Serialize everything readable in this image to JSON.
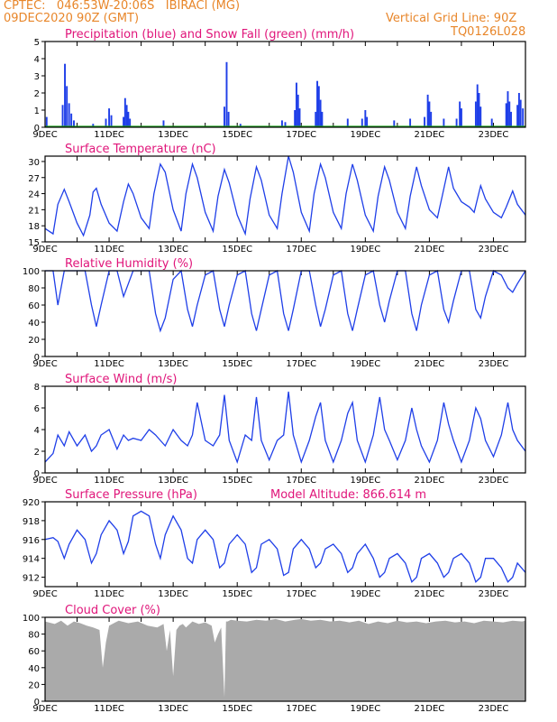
{
  "header": {
    "station": "CPTEC:   046:53W-20:06S   IBIRACI (MG)",
    "run": "09DEC2020 90Z (GMT)",
    "grid_line": "Vertical Grid Line: 90Z",
    "code": "TQ0126L028"
  },
  "colors": {
    "title": "#e0157a",
    "header": "#e8862a",
    "line": "#1f3fe8",
    "cloud": "#aaaaaa",
    "snow": "#1aa01a"
  },
  "chart_data": [
    {
      "type": "bar",
      "title": "Precipitation (blue) and Snow Fall (green) (mm/h)",
      "ylim": [
        0,
        5
      ],
      "yticks": [
        "0",
        "1",
        "2",
        "3",
        "4",
        "5"
      ],
      "xticks": [
        "9DEC",
        "11DEC",
        "13DEC",
        "15DEC",
        "17DEC",
        "19DEC",
        "21DEC",
        "23DEC"
      ],
      "x_range_days": [
        9,
        24
      ],
      "series": [
        {
          "name": "Precipitation",
          "points": [
            [
              9.05,
              0.6
            ],
            [
              9.55,
              1.3
            ],
            [
              9.62,
              3.7
            ],
            [
              9.68,
              2.4
            ],
            [
              9.75,
              1.4
            ],
            [
              9.82,
              0.8
            ],
            [
              9.9,
              0.4
            ],
            [
              10.5,
              0.2
            ],
            [
              10.9,
              0.5
            ],
            [
              11.0,
              1.1
            ],
            [
              11.07,
              0.7
            ],
            [
              11.45,
              0.6
            ],
            [
              11.5,
              1.7
            ],
            [
              11.55,
              1.3
            ],
            [
              11.6,
              0.9
            ],
            [
              11.65,
              0.5
            ],
            [
              12.7,
              0.4
            ],
            [
              14.6,
              1.2
            ],
            [
              14.67,
              3.8
            ],
            [
              14.73,
              0.9
            ],
            [
              15.1,
              0.2
            ],
            [
              16.4,
              0.4
            ],
            [
              16.5,
              0.3
            ],
            [
              16.8,
              1.0
            ],
            [
              16.85,
              2.6
            ],
            [
              16.9,
              1.9
            ],
            [
              16.95,
              1.1
            ],
            [
              17.45,
              0.9
            ],
            [
              17.5,
              2.7
            ],
            [
              17.55,
              2.4
            ],
            [
              17.6,
              1.6
            ],
            [
              17.65,
              0.9
            ],
            [
              18.45,
              0.5
            ],
            [
              18.9,
              0.5
            ],
            [
              19.0,
              1.0
            ],
            [
              19.05,
              0.6
            ],
            [
              19.9,
              0.4
            ],
            [
              20.4,
              0.5
            ],
            [
              20.85,
              0.6
            ],
            [
              20.95,
              1.9
            ],
            [
              21.0,
              1.5
            ],
            [
              21.05,
              0.9
            ],
            [
              21.45,
              0.5
            ],
            [
              21.85,
              0.5
            ],
            [
              21.95,
              1.5
            ],
            [
              22.0,
              1.1
            ],
            [
              22.45,
              1.5
            ],
            [
              22.5,
              2.5
            ],
            [
              22.55,
              2.0
            ],
            [
              22.6,
              1.2
            ],
            [
              22.95,
              0.5
            ],
            [
              23.4,
              1.4
            ],
            [
              23.45,
              2.1
            ],
            [
              23.5,
              1.5
            ],
            [
              23.55,
              0.9
            ],
            [
              23.75,
              1.3
            ],
            [
              23.8,
              2.0
            ],
            [
              23.85,
              1.6
            ],
            [
              23.92,
              1.1
            ]
          ]
        },
        {
          "name": "Snow Fall",
          "values": [
            0
          ]
        }
      ]
    },
    {
      "type": "line",
      "title": "Surface Temperature (nC)",
      "ylim": [
        15,
        31
      ],
      "yticks": [
        "15",
        "18",
        "21",
        "24",
        "27",
        "30"
      ],
      "xticks": [
        "9DEC",
        "11DEC",
        "13DEC",
        "15DEC",
        "17DEC",
        "19DEC",
        "21DEC",
        "23DEC"
      ],
      "x_range_days": [
        9,
        24
      ],
      "x": [
        9.0,
        9.25,
        9.4,
        9.6,
        9.75,
        10.0,
        10.2,
        10.4,
        10.5,
        10.6,
        10.75,
        11.0,
        11.25,
        11.45,
        11.6,
        11.75,
        12.0,
        12.25,
        12.4,
        12.6,
        12.75,
        13.0,
        13.25,
        13.4,
        13.6,
        13.75,
        14.0,
        14.25,
        14.4,
        14.6,
        14.75,
        15.0,
        15.25,
        15.4,
        15.6,
        15.75,
        16.0,
        16.25,
        16.4,
        16.6,
        16.75,
        17.0,
        17.25,
        17.4,
        17.6,
        17.75,
        18.0,
        18.25,
        18.4,
        18.6,
        18.75,
        19.0,
        19.25,
        19.4,
        19.6,
        19.75,
        20.0,
        20.25,
        20.4,
        20.6,
        20.75,
        21.0,
        21.25,
        21.4,
        21.6,
        21.75,
        22.0,
        22.25,
        22.4,
        22.6,
        22.75,
        23.0,
        23.25,
        23.4,
        23.6,
        23.75,
        24.0
      ],
      "values": [
        17.5,
        16.5,
        22,
        24.8,
        22.5,
        18.5,
        16.2,
        20,
        24.3,
        25,
        22,
        18.5,
        17,
        22.5,
        25.8,
        24,
        19.5,
        17.5,
        24,
        29.5,
        28,
        21,
        17,
        24,
        29.5,
        27,
        20.5,
        17,
        23.5,
        28.5,
        26,
        20,
        16.5,
        23,
        29,
        26.5,
        20,
        17.5,
        24,
        31,
        28,
        20.5,
        17,
        24,
        29.5,
        27,
        20.5,
        17.5,
        24,
        29.5,
        26.5,
        20,
        17,
        23.5,
        29,
        26.5,
        20.5,
        17.5,
        23.5,
        29,
        25.5,
        21,
        19.5,
        23.5,
        29,
        25,
        22.5,
        21.5,
        20.5,
        25.5,
        23,
        20.5,
        19.5,
        21.5,
        24.5,
        22,
        20
      ]
    },
    {
      "type": "line",
      "title": "Relative Humidity (%)",
      "ylim": [
        0,
        100
      ],
      "yticks": [
        "0",
        "20",
        "40",
        "60",
        "80",
        "100"
      ],
      "xticks": [
        "9DEC",
        "11DEC",
        "13DEC",
        "15DEC",
        "17DEC",
        "19DEC",
        "21DEC",
        "23DEC"
      ],
      "x_range_days": [
        9,
        24
      ],
      "x": [
        9.0,
        9.25,
        9.4,
        9.6,
        9.75,
        10.0,
        10.25,
        10.45,
        10.6,
        10.75,
        11.0,
        11.25,
        11.45,
        11.6,
        11.75,
        12.0,
        12.25,
        12.45,
        12.6,
        12.75,
        13.0,
        13.25,
        13.45,
        13.6,
        13.75,
        14.0,
        14.25,
        14.45,
        14.6,
        14.75,
        15.0,
        15.25,
        15.45,
        15.6,
        15.75,
        16.0,
        16.25,
        16.45,
        16.6,
        16.75,
        17.0,
        17.25,
        17.45,
        17.6,
        17.75,
        18.0,
        18.25,
        18.45,
        18.6,
        18.75,
        19.0,
        19.25,
        19.45,
        19.6,
        19.75,
        20.0,
        20.25,
        20.45,
        20.6,
        20.75,
        21.0,
        21.25,
        21.45,
        21.6,
        21.75,
        22.0,
        22.25,
        22.45,
        22.6,
        22.75,
        23.0,
        23.25,
        23.45,
        23.6,
        23.75,
        24.0
      ],
      "values": [
        100,
        100,
        60,
        100,
        100,
        100,
        100,
        60,
        35,
        60,
        100,
        100,
        70,
        85,
        100,
        100,
        100,
        50,
        30,
        45,
        90,
        100,
        55,
        35,
        60,
        95,
        100,
        55,
        35,
        60,
        95,
        100,
        50,
        30,
        55,
        95,
        100,
        50,
        30,
        55,
        100,
        100,
        60,
        35,
        55,
        95,
        100,
        50,
        30,
        55,
        95,
        100,
        60,
        40,
        65,
        100,
        100,
        50,
        30,
        60,
        95,
        100,
        55,
        40,
        65,
        100,
        100,
        55,
        45,
        70,
        100,
        95,
        80,
        75,
        85,
        100
      ]
    },
    {
      "type": "line",
      "title": "Surface Wind (m/s)",
      "ylim": [
        0,
        8
      ],
      "yticks": [
        "0",
        "2",
        "4",
        "6",
        "8"
      ],
      "xticks": [
        "9DEC",
        "11DEC",
        "13DEC",
        "15DEC",
        "17DEC",
        "19DEC",
        "21DEC",
        "23DEC"
      ],
      "x_range_days": [
        9,
        24
      ],
      "x": [
        9.0,
        9.25,
        9.4,
        9.6,
        9.75,
        10.0,
        10.25,
        10.45,
        10.6,
        10.75,
        11.0,
        11.25,
        11.45,
        11.6,
        11.75,
        12.0,
        12.25,
        12.45,
        12.6,
        12.75,
        13.0,
        13.25,
        13.45,
        13.6,
        13.75,
        14.0,
        14.25,
        14.45,
        14.6,
        14.75,
        15.0,
        15.25,
        15.45,
        15.6,
        15.75,
        16.0,
        16.25,
        16.45,
        16.6,
        16.75,
        17.0,
        17.25,
        17.45,
        17.6,
        17.75,
        18.0,
        18.25,
        18.45,
        18.6,
        18.75,
        19.0,
        19.25,
        19.45,
        19.6,
        19.75,
        20.0,
        20.25,
        20.45,
        20.6,
        20.75,
        21.0,
        21.25,
        21.45,
        21.6,
        21.75,
        22.0,
        22.25,
        22.45,
        22.6,
        22.75,
        23.0,
        23.25,
        23.45,
        23.6,
        23.75,
        24.0
      ],
      "values": [
        1,
        1.8,
        3.5,
        2.5,
        3.8,
        2.5,
        3.5,
        2,
        2.5,
        3.5,
        4,
        2.2,
        3.5,
        3,
        3.2,
        3,
        4,
        3.5,
        3,
        2.5,
        4,
        3,
        2.5,
        3.5,
        6.5,
        3,
        2.5,
        3.5,
        7.2,
        3,
        1,
        3.5,
        3,
        7,
        3,
        1.2,
        3,
        3.5,
        7.5,
        3.5,
        1,
        3,
        5.2,
        6.5,
        3,
        1,
        3,
        5.5,
        6.5,
        3,
        1,
        3.5,
        7,
        4,
        3,
        1.2,
        3,
        6,
        4,
        2.5,
        1,
        3,
        6.5,
        4.5,
        3,
        1,
        3,
        6,
        5,
        3,
        1.5,
        3.5,
        6.5,
        4,
        3,
        2
      ]
    },
    {
      "type": "line",
      "title": "Surface Pressure (hPa)",
      "annotation": "Model Altitude: 866.614  m",
      "ylim": [
        911,
        920
      ],
      "yticks": [
        "912",
        "914",
        "916",
        "918",
        "920"
      ],
      "xticks": [
        "9DEC",
        "11DEC",
        "13DEC",
        "15DEC",
        "17DEC",
        "19DEC",
        "21DEC",
        "23DEC"
      ],
      "x_range_days": [
        9,
        24
      ],
      "x": [
        9.0,
        9.25,
        9.4,
        9.6,
        9.75,
        10.0,
        10.25,
        10.45,
        10.6,
        10.75,
        11.0,
        11.25,
        11.45,
        11.6,
        11.75,
        12.0,
        12.25,
        12.45,
        12.6,
        12.75,
        13.0,
        13.25,
        13.45,
        13.6,
        13.75,
        14.0,
        14.25,
        14.45,
        14.6,
        14.75,
        15.0,
        15.25,
        15.45,
        15.6,
        15.75,
        16.0,
        16.25,
        16.45,
        16.6,
        16.75,
        17.0,
        17.25,
        17.45,
        17.6,
        17.75,
        18.0,
        18.25,
        18.45,
        18.6,
        18.75,
        19.0,
        19.25,
        19.45,
        19.6,
        19.75,
        20.0,
        20.25,
        20.45,
        20.6,
        20.75,
        21.0,
        21.25,
        21.45,
        21.6,
        21.75,
        22.0,
        22.25,
        22.45,
        22.6,
        22.75,
        23.0,
        23.25,
        23.45,
        23.6,
        23.75,
        24.0
      ],
      "values": [
        916,
        916.2,
        915.8,
        914,
        915.5,
        917,
        916,
        913.5,
        914.5,
        916.5,
        918,
        917,
        914.5,
        915.8,
        918.5,
        919,
        918.5,
        915.5,
        914,
        916.5,
        918.5,
        917,
        914,
        913.5,
        916,
        917,
        916,
        913,
        913.5,
        915.5,
        916.5,
        915.5,
        912.5,
        913,
        915.5,
        916,
        915,
        912.2,
        912.5,
        915,
        916,
        915,
        913,
        913.5,
        915,
        915.5,
        914.5,
        912.5,
        913,
        914.5,
        915.5,
        914,
        912,
        912.5,
        914,
        914.5,
        913.5,
        911.5,
        912,
        914,
        914.5,
        913.5,
        912,
        912.5,
        914,
        914.5,
        913.5,
        911.5,
        912,
        914,
        914,
        913,
        911.5,
        912,
        913.5,
        912.5
      ]
    },
    {
      "type": "area",
      "title": "Cloud Cover (%)",
      "ylim": [
        0,
        100
      ],
      "yticks": [
        "0",
        "20",
        "40",
        "60",
        "80",
        "100"
      ],
      "xticks": [
        "9DEC",
        "11DEC",
        "13DEC",
        "15DEC",
        "17DEC",
        "19DEC",
        "21DEC",
        "23DEC"
      ],
      "x_range_days": [
        9,
        24
      ],
      "x": [
        9.0,
        9.3,
        9.5,
        9.7,
        9.9,
        10.1,
        10.3,
        10.5,
        10.7,
        10.8,
        10.9,
        11.0,
        11.3,
        11.6,
        11.9,
        12.2,
        12.5,
        12.7,
        12.8,
        12.9,
        13.0,
        13.1,
        13.2,
        13.3,
        13.4,
        13.6,
        13.8,
        14.0,
        14.2,
        14.3,
        14.4,
        14.5,
        14.6,
        14.65,
        14.7,
        14.8,
        15.0,
        15.3,
        15.6,
        15.9,
        16.2,
        16.5,
        16.8,
        17.0,
        17.3,
        17.6,
        17.9,
        18.2,
        18.5,
        18.8,
        19.1,
        19.4,
        19.7,
        20.0,
        20.3,
        20.6,
        20.9,
        21.2,
        21.5,
        21.8,
        22.1,
        22.4,
        22.7,
        23.0,
        23.3,
        23.6,
        23.9,
        24.0
      ],
      "values": [
        95,
        92,
        96,
        90,
        95,
        93,
        90,
        88,
        85,
        40,
        70,
        90,
        96,
        93,
        95,
        90,
        88,
        92,
        60,
        85,
        30,
        85,
        90,
        92,
        88,
        95,
        92,
        94,
        90,
        70,
        80,
        88,
        5,
        95,
        95,
        97,
        96,
        95,
        97,
        96,
        98,
        95,
        97,
        98,
        96,
        97,
        95,
        96,
        94,
        96,
        92,
        95,
        93,
        96,
        94,
        95,
        93,
        95,
        96,
        94,
        95,
        93,
        96,
        95,
        94,
        96,
        95,
        96
      ]
    }
  ]
}
